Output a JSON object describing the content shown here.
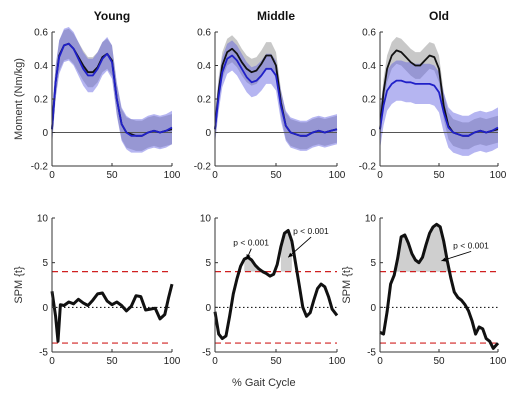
{
  "figure": {
    "xlabel_bottom": "% Gait Cycle"
  },
  "colors": {
    "control": "#111111",
    "group": "#2020c8",
    "group_band": "#5a5ae0",
    "control_band": "#9a9a9a",
    "threshold": "#d02020",
    "spm_fill": "#cfcfcf"
  },
  "chart_data": [
    {
      "type": "line",
      "panel": "moment-young",
      "title": "Young",
      "ylabel": "Moment (Nm/kg)",
      "xlabel": "",
      "xlim": [
        0,
        100
      ],
      "ylim": [
        -0.2,
        0.6
      ],
      "xticks": [
        "0",
        "50",
        "100"
      ],
      "yticks": [
        "-0.2",
        "0",
        "0.2",
        "0.4",
        "0.6"
      ],
      "zero_line": true,
      "x": [
        0,
        3,
        6,
        10,
        14,
        18,
        22,
        26,
        30,
        34,
        38,
        42,
        46,
        50,
        54,
        58,
        62,
        66,
        70,
        75,
        80,
        85,
        90,
        95,
        100
      ],
      "series": [
        {
          "name": "",
          "role": "control",
          "values": [
            0.02,
            0.3,
            0.46,
            0.52,
            0.53,
            0.5,
            0.45,
            0.4,
            0.36,
            0.36,
            0.39,
            0.45,
            0.47,
            0.43,
            0.2,
            0.05,
            0.0,
            -0.01,
            -0.02,
            -0.02,
            0.0,
            0.01,
            0.0,
            0.01,
            0.02
          ],
          "band": 0.09
        },
        {
          "name": "",
          "role": "group",
          "values": [
            0.02,
            0.3,
            0.45,
            0.52,
            0.53,
            0.5,
            0.44,
            0.38,
            0.34,
            0.34,
            0.38,
            0.44,
            0.47,
            0.42,
            0.2,
            0.05,
            0.0,
            -0.02,
            -0.02,
            -0.02,
            0.0,
            0.01,
            0.0,
            0.01,
            0.03
          ],
          "band": 0.1
        }
      ]
    },
    {
      "type": "line",
      "panel": "moment-middle",
      "title": "Middle",
      "ylabel": "",
      "xlabel": "",
      "xlim": [
        0,
        100
      ],
      "ylim": [
        -0.2,
        0.6
      ],
      "xticks": [
        "0",
        "50",
        "100"
      ],
      "yticks": [
        "-0.2",
        "0",
        "0.2",
        "0.4",
        "0.6"
      ],
      "zero_line": true,
      "x": [
        0,
        3,
        6,
        10,
        14,
        18,
        22,
        26,
        30,
        34,
        38,
        42,
        46,
        50,
        54,
        58,
        62,
        66,
        70,
        75,
        80,
        85,
        90,
        95,
        100
      ],
      "series": [
        {
          "name": "",
          "role": "control",
          "values": [
            0.02,
            0.25,
            0.4,
            0.48,
            0.5,
            0.47,
            0.42,
            0.38,
            0.36,
            0.37,
            0.41,
            0.46,
            0.46,
            0.4,
            0.18,
            0.04,
            0.0,
            -0.01,
            -0.02,
            -0.02,
            0.0,
            0.01,
            0.0,
            0.01,
            0.02
          ],
          "band": 0.08
        },
        {
          "name": "",
          "role": "group",
          "values": [
            0.02,
            0.22,
            0.36,
            0.44,
            0.46,
            0.43,
            0.38,
            0.33,
            0.3,
            0.31,
            0.34,
            0.38,
            0.38,
            0.34,
            0.16,
            0.04,
            0.0,
            -0.01,
            -0.02,
            -0.02,
            0.0,
            0.01,
            0.0,
            0.01,
            0.02
          ],
          "band": 0.09
        }
      ]
    },
    {
      "type": "line",
      "panel": "moment-old",
      "title": "Old",
      "ylabel": "",
      "xlabel": "",
      "xlim": [
        0,
        100
      ],
      "ylim": [
        -0.2,
        0.6
      ],
      "xticks": [
        "0",
        "50",
        "100"
      ],
      "yticks": [
        "-0.2",
        "0",
        "0.2",
        "0.4",
        "0.6"
      ],
      "zero_line": true,
      "x": [
        0,
        3,
        6,
        10,
        14,
        18,
        22,
        26,
        30,
        34,
        38,
        42,
        46,
        50,
        54,
        58,
        62,
        66,
        70,
        75,
        80,
        85,
        90,
        95,
        100
      ],
      "series": [
        {
          "name": "",
          "role": "control",
          "values": [
            0.02,
            0.24,
            0.38,
            0.46,
            0.49,
            0.48,
            0.45,
            0.42,
            0.4,
            0.4,
            0.43,
            0.46,
            0.45,
            0.38,
            0.16,
            0.04,
            0.0,
            -0.01,
            -0.02,
            -0.02,
            0.0,
            0.01,
            0.0,
            0.01,
            0.02
          ],
          "band": 0.08
        },
        {
          "name": "",
          "role": "group",
          "values": [
            0.02,
            0.16,
            0.25,
            0.29,
            0.31,
            0.31,
            0.3,
            0.3,
            0.29,
            0.29,
            0.29,
            0.29,
            0.28,
            0.24,
            0.12,
            0.03,
            0.0,
            -0.01,
            -0.02,
            -0.02,
            0.0,
            0.01,
            0.0,
            0.01,
            0.03
          ],
          "band": 0.12
        }
      ]
    },
    {
      "type": "line",
      "panel": "spm-young",
      "title": "",
      "ylabel": "SPM {t}",
      "xlabel": "",
      "xlim": [
        0,
        100
      ],
      "ylim": [
        -5,
        10
      ],
      "xticks": [
        "0",
        "50",
        "100"
      ],
      "yticks": [
        "-5",
        "0",
        "5",
        "10"
      ],
      "threshold": 4.0,
      "zero_line": true,
      "x": [
        0,
        3,
        5,
        7,
        10,
        14,
        18,
        22,
        26,
        30,
        34,
        38,
        42,
        46,
        50,
        54,
        58,
        62,
        66,
        70,
        74,
        78,
        82,
        86,
        90,
        94,
        97,
        100
      ],
      "series": [
        {
          "name": "",
          "role": "spm",
          "values": [
            1.8,
            -1.0,
            -3.8,
            0.3,
            0.2,
            0.6,
            0.4,
            0.9,
            0.5,
            0.2,
            0.8,
            1.5,
            1.6,
            0.7,
            0.3,
            0.6,
            0.2,
            -0.4,
            0.1,
            1.3,
            1.2,
            -0.3,
            -0.2,
            -0.1,
            -1.3,
            -0.8,
            1.0,
            2.6
          ]
        }
      ],
      "clusters": []
    },
    {
      "type": "line",
      "panel": "spm-middle",
      "title": "",
      "ylabel": "",
      "xlabel": "% Gait Cycle",
      "xlim": [
        0,
        100
      ],
      "ylim": [
        -5,
        10
      ],
      "xticks": [
        "0",
        "50",
        "100"
      ],
      "yticks": [
        "-5",
        "0",
        "5",
        "10"
      ],
      "threshold": 4.0,
      "zero_line": true,
      "x": [
        0,
        3,
        6,
        9,
        12,
        15,
        18,
        21,
        24,
        27,
        30,
        33,
        36,
        39,
        42,
        45,
        48,
        51,
        54,
        57,
        60,
        63,
        66,
        69,
        72,
        75,
        78,
        81,
        84,
        87,
        90,
        93,
        96,
        100
      ],
      "series": [
        {
          "name": "",
          "role": "spm",
          "values": [
            -0.5,
            -3.0,
            -3.5,
            -3.2,
            -1.0,
            1.5,
            3.2,
            4.6,
            5.4,
            5.6,
            5.3,
            4.7,
            4.3,
            4.0,
            3.8,
            3.5,
            3.7,
            4.8,
            6.8,
            8.3,
            8.6,
            7.4,
            5.0,
            2.5,
            0.0,
            -1.0,
            -0.6,
            0.8,
            2.1,
            2.6,
            2.3,
            1.2,
            -0.2,
            -0.9
          ]
        }
      ],
      "clusters": [
        {
          "x0": 22,
          "x1": 36,
          "label": "p < 0.001",
          "label_x": 15,
          "label_y": 6.9,
          "arrow_x": 26,
          "arrow_y": 5.4
        },
        {
          "x0": 53,
          "x1": 64,
          "label": "p < 0.001",
          "label_x": 64,
          "label_y": 8.2,
          "arrow_x": 60,
          "arrow_y": 5.6
        }
      ]
    },
    {
      "type": "line",
      "panel": "spm-old",
      "title": "",
      "ylabel": "SPM {t}",
      "xlabel": "",
      "xlim": [
        0,
        100
      ],
      "ylim": [
        -5,
        10
      ],
      "xticks": [
        "0",
        "50",
        "100"
      ],
      "yticks": [
        "-5",
        "0",
        "5",
        "10"
      ],
      "threshold": 4.0,
      "zero_line": true,
      "x": [
        0,
        3,
        6,
        9,
        12,
        15,
        18,
        21,
        24,
        27,
        30,
        33,
        36,
        39,
        42,
        45,
        48,
        51,
        54,
        57,
        60,
        63,
        66,
        69,
        72,
        75,
        78,
        81,
        84,
        87,
        90,
        93,
        96,
        100
      ],
      "series": [
        {
          "name": "",
          "role": "spm",
          "values": [
            -2.8,
            -3.0,
            -0.5,
            2.6,
            3.6,
            5.5,
            7.9,
            8.1,
            7.2,
            6.0,
            5.3,
            5.0,
            5.6,
            7.0,
            8.3,
            9.0,
            9.3,
            9.0,
            7.4,
            5.2,
            3.3,
            1.7,
            1.1,
            0.8,
            0.3,
            -0.4,
            -1.5,
            -3.0,
            -2.2,
            -2.4,
            -3.5,
            -3.8,
            -4.6,
            -4.0
          ]
        }
      ],
      "clusters": [
        {
          "x0": 10,
          "x1": 61,
          "label": "p < 0.001",
          "label_x": 62,
          "label_y": 6.6,
          "arrow_x": 52,
          "arrow_y": 5.2
        }
      ]
    }
  ]
}
